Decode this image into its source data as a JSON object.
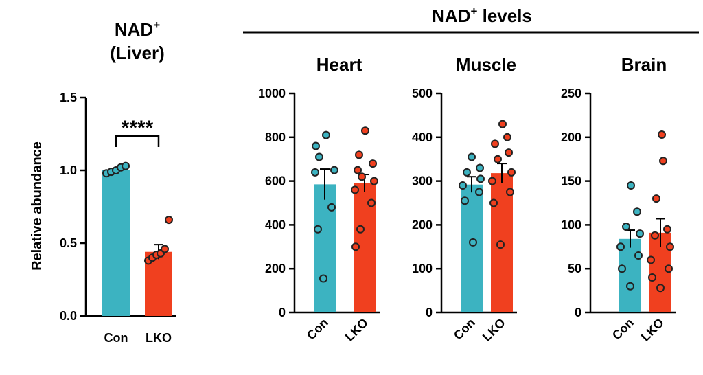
{
  "figure": {
    "group_title_main": "NAD",
    "group_title_sup": "+",
    "group_title_rest": " levels"
  },
  "chart_data": [
    {
      "type": "bar",
      "title_main": "NAD",
      "title_sup": "+",
      "title_line2": "(Liver)",
      "ylabel": "Relative abundance",
      "ylim": [
        0,
        1.5
      ],
      "yticks": [
        "0.0",
        "0.5",
        "1.0",
        "1.5"
      ],
      "categories": [
        "Con",
        "LKO"
      ],
      "values": [
        1.0,
        0.44
      ],
      "sem": [
        0.01,
        0.05
      ],
      "points": [
        [
          0.98,
          0.99,
          1.0,
          1.02,
          1.03
        ],
        [
          0.38,
          0.4,
          0.42,
          0.43,
          0.46,
          0.66
        ]
      ],
      "significance": "****",
      "colors": [
        "#3cb3c1",
        "#f0401f"
      ]
    },
    {
      "type": "bar",
      "title": "Heart",
      "ylim": [
        0,
        1000
      ],
      "yticks": [
        "0",
        "200",
        "400",
        "600",
        "800",
        "1000"
      ],
      "categories": [
        "Con",
        "LKO"
      ],
      "values": [
        585,
        590
      ],
      "sem": [
        70,
        40
      ],
      "points": [
        [
          155,
          380,
          480,
          640,
          650,
          710,
          760,
          810
        ],
        [
          300,
          380,
          500,
          560,
          600,
          620,
          650,
          680,
          720,
          830
        ]
      ],
      "colors": [
        "#3cb3c1",
        "#f0401f"
      ]
    },
    {
      "type": "bar",
      "title": "Muscle",
      "ylim": [
        0,
        500
      ],
      "yticks": [
        "0",
        "100",
        "200",
        "300",
        "400",
        "500"
      ],
      "categories": [
        "Con",
        "LKO"
      ],
      "values": [
        292,
        318
      ],
      "sem": [
        18,
        22
      ],
      "points": [
        [
          160,
          255,
          275,
          290,
          305,
          320,
          330,
          355
        ],
        [
          155,
          250,
          275,
          300,
          320,
          350,
          365,
          385,
          400,
          430
        ]
      ],
      "colors": [
        "#3cb3c1",
        "#f0401f"
      ]
    },
    {
      "type": "bar",
      "title": "Brain",
      "ylim": [
        0,
        250
      ],
      "yticks": [
        "0",
        "50",
        "100",
        "150",
        "200",
        "250"
      ],
      "categories": [
        "Con",
        "LKO"
      ],
      "values": [
        84,
        91
      ],
      "sem": [
        10,
        16
      ],
      "points": [
        [
          30,
          50,
          65,
          75,
          90,
          98,
          115,
          145
        ],
        [
          28,
          40,
          50,
          60,
          75,
          88,
          95,
          130,
          173,
          203
        ]
      ],
      "colors": [
        "#3cb3c1",
        "#f0401f"
      ]
    }
  ]
}
